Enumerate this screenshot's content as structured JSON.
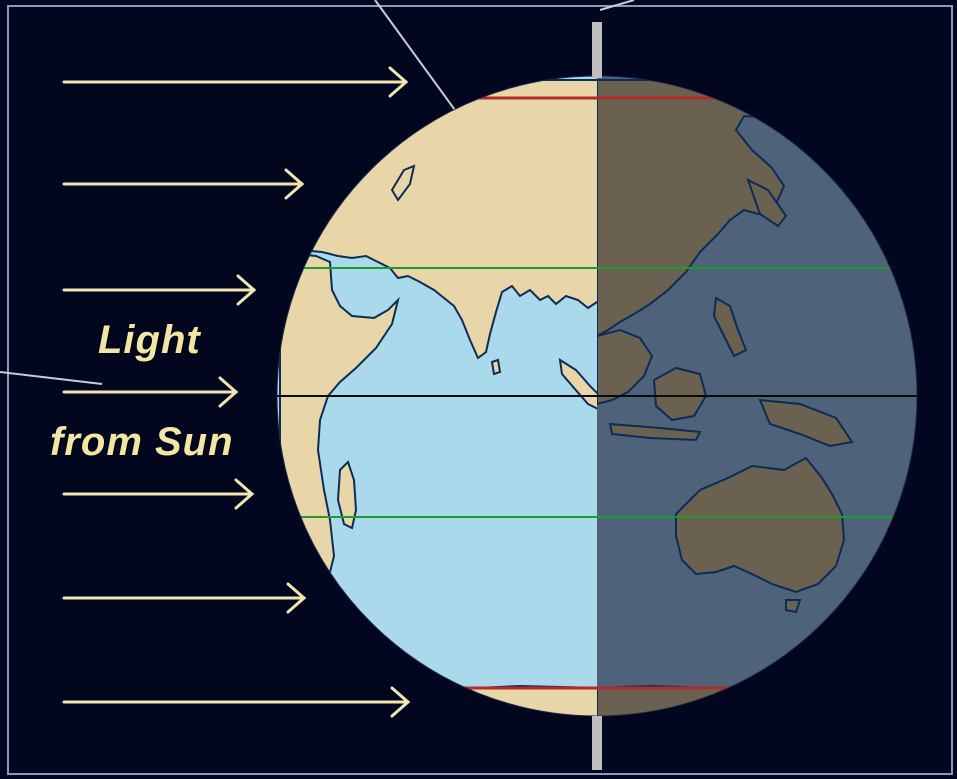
{
  "caption": {
    "line1": "Light",
    "line2": "from Sun"
  },
  "colors": {
    "background": "#03061f",
    "day_land": "#e9d6a8",
    "day_ocean": "#a9d9ea",
    "night_land": "#6b6150",
    "night_ocean": "#4e6279",
    "coastline": "#0d2c55",
    "arrow": "#efe6b2",
    "polar_circle": "#b52a2a",
    "tropic": "#1e9a2e",
    "equator": "#0a0a0a",
    "axis": "#bdbdbd"
  },
  "latitude_lines": [
    "arctic-circle",
    "tropic-of-cancer",
    "equator",
    "tropic-of-capricorn",
    "antarctic-circle"
  ]
}
